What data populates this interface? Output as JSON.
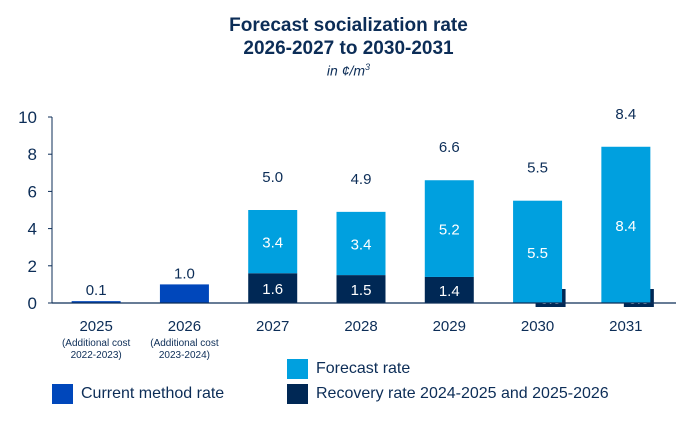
{
  "chart_data": {
    "type": "bar",
    "stacked": true,
    "title": "Forecast socialization rate",
    "title_line2": "2026-2027 to 2030-2031",
    "subtitle_prefix": "in ¢/m",
    "subtitle_sup": "3",
    "xlabel": "",
    "ylabel": "",
    "ylim": [
      0,
      10
    ],
    "yticks": [
      "0",
      "2",
      "4",
      "6",
      "8",
      "10"
    ],
    "grid": false,
    "categories": [
      {
        "label": "2025",
        "sublabel": [
          "(Additional cost",
          "2022-2023)"
        ]
      },
      {
        "label": "2026",
        "sublabel": [
          "(Additional cost",
          "2023-2024)"
        ]
      },
      {
        "label": "2027",
        "sublabel": []
      },
      {
        "label": "2028",
        "sublabel": []
      },
      {
        "label": "2029",
        "sublabel": []
      },
      {
        "label": "2030",
        "sublabel": []
      },
      {
        "label": "2031",
        "sublabel": []
      }
    ],
    "series": [
      {
        "name": "Current method rate",
        "color": "#0047bb",
        "values": [
          0.1,
          1.0,
          null,
          null,
          null,
          null,
          null
        ]
      },
      {
        "name": "Recovery rate 2024-2025 and 2025-2026",
        "color": "#002855",
        "values": [
          null,
          null,
          1.6,
          1.5,
          1.4,
          0.0,
          0.0
        ]
      },
      {
        "name": "Forecast rate",
        "color": "#00a0df",
        "values": [
          null,
          null,
          3.4,
          3.4,
          5.2,
          5.5,
          8.4
        ]
      }
    ],
    "totals": [
      "0.1",
      "1.0",
      "5.0",
      "4.9",
      "6.6",
      "5.5",
      "8.4"
    ],
    "legend_placement": "bottom",
    "legend": [
      {
        "name": "Forecast rate",
        "color": "#00a0df"
      },
      {
        "name": "Current method rate",
        "color": "#0047bb"
      },
      {
        "name": "Recovery rate 2024-2025 and 2025-2026",
        "color": "#002855"
      }
    ]
  }
}
